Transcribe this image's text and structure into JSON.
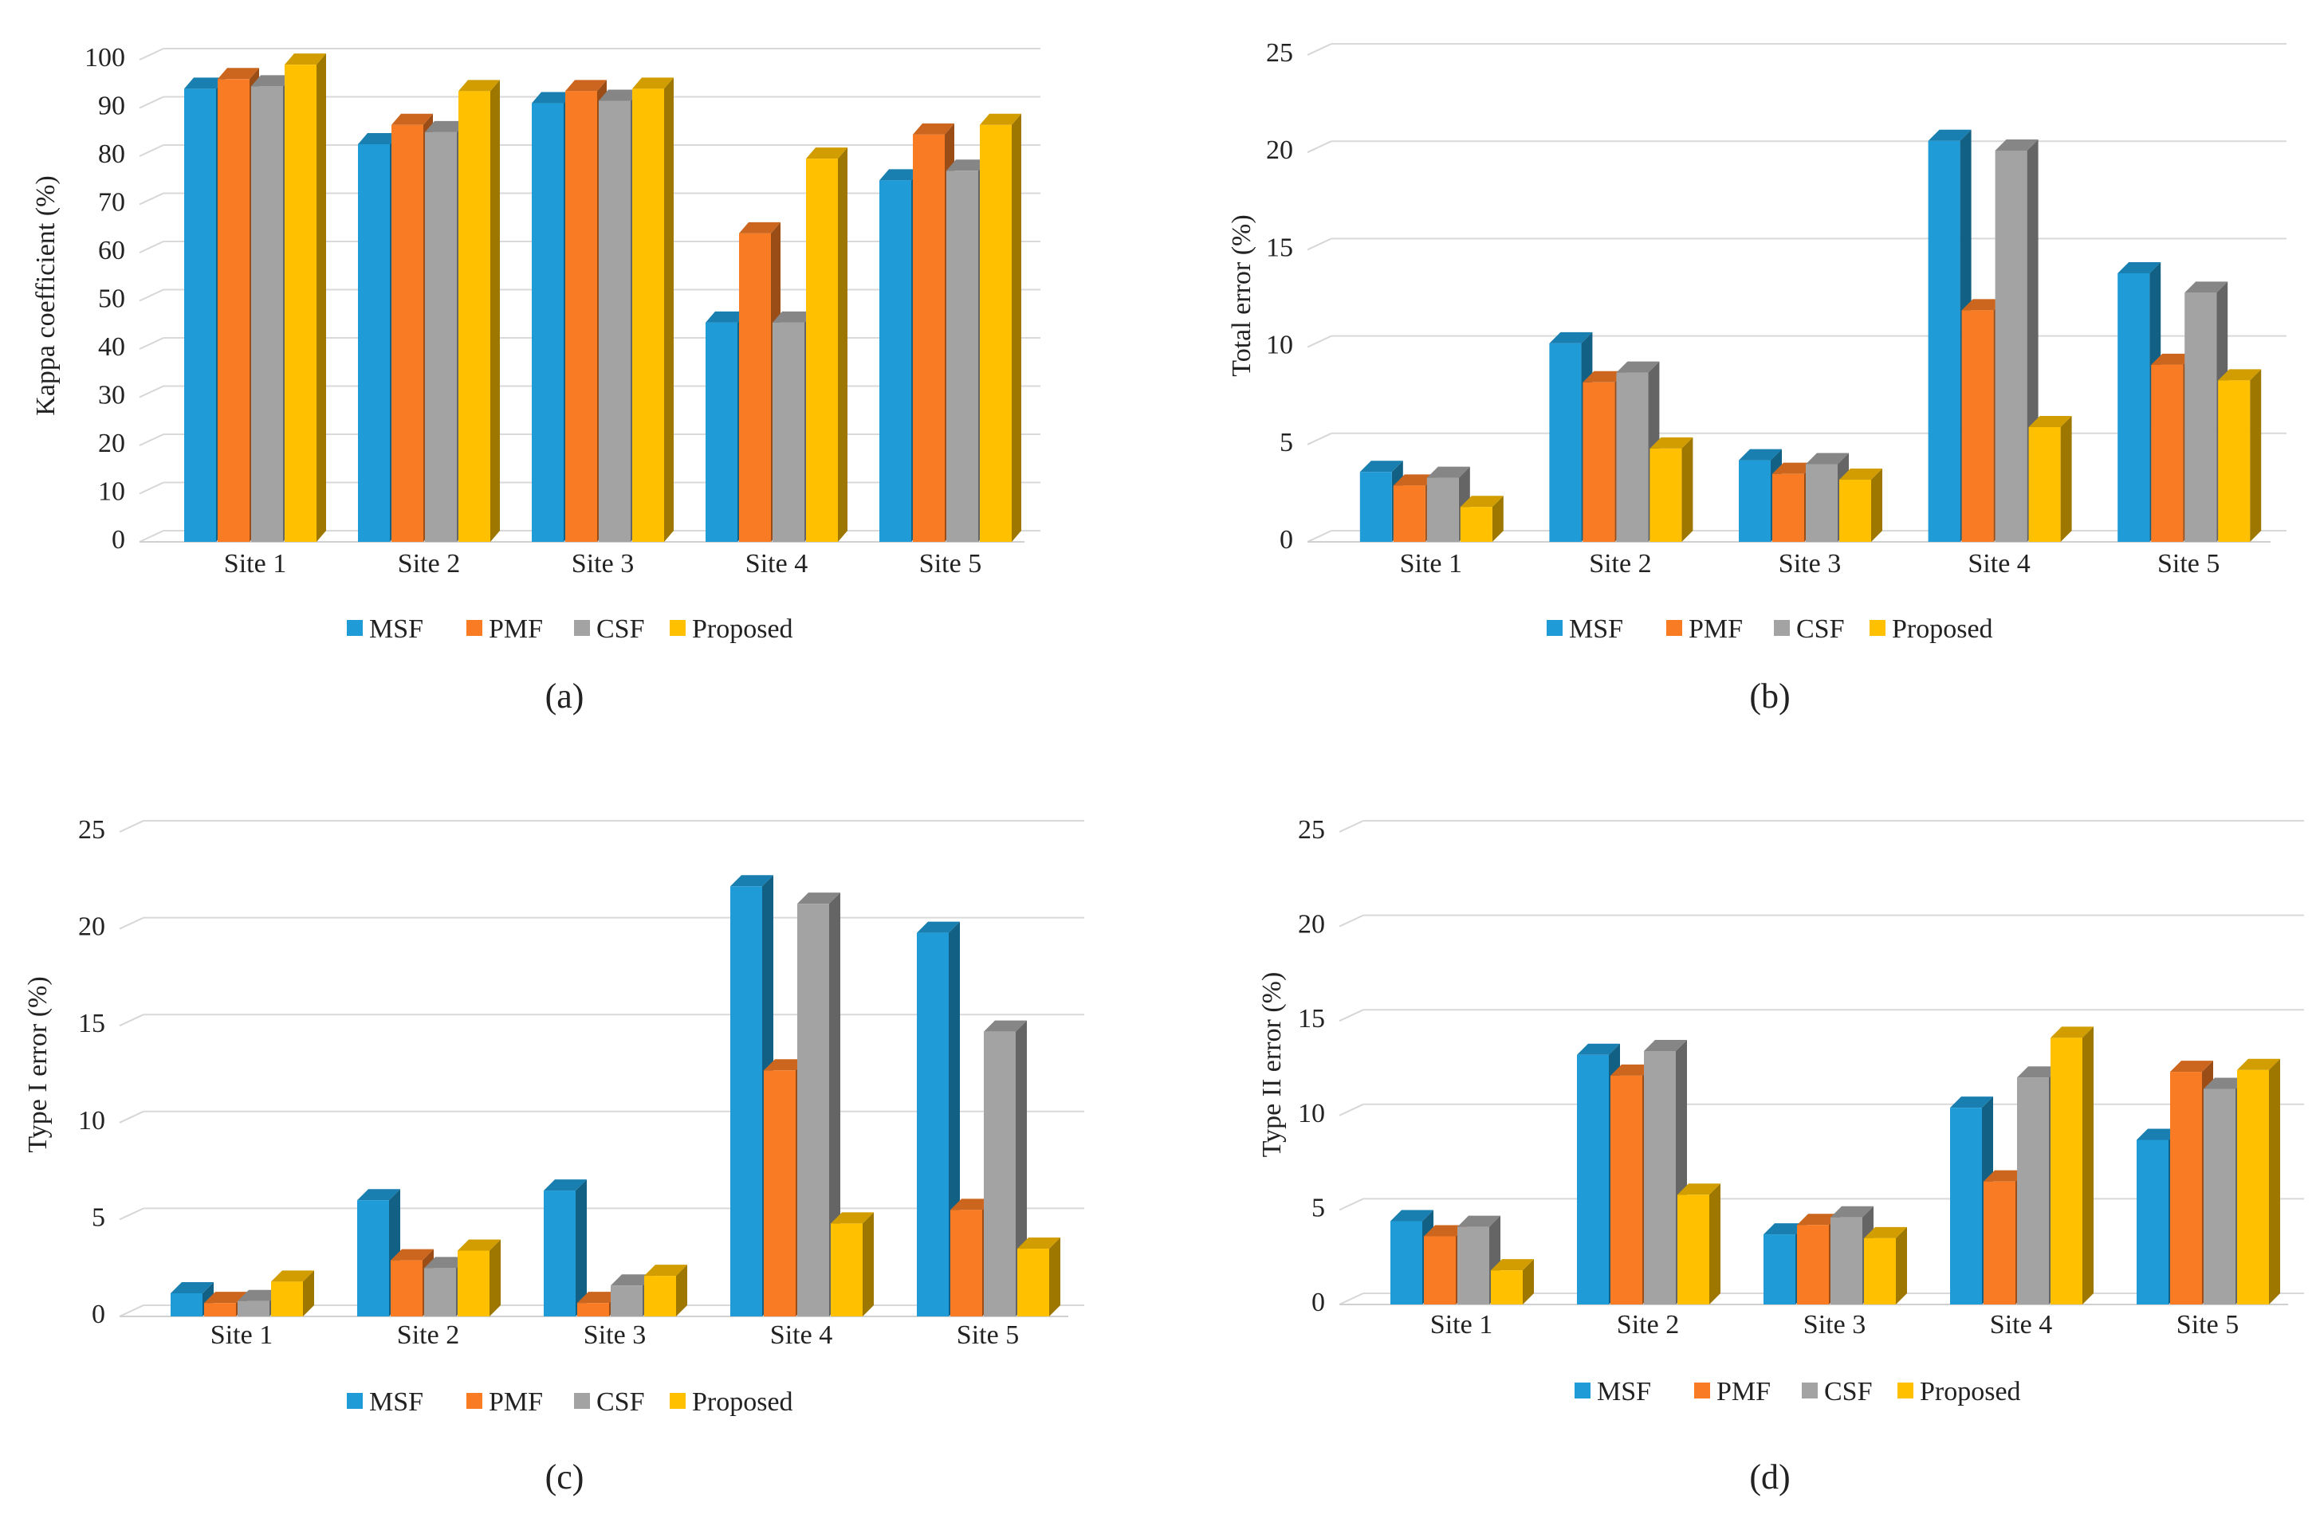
{
  "colors": {
    "MSF": "#1F9BD7",
    "PMF": "#F97C24",
    "CSF": "#A3A3A3",
    "Proposed": "#FFC000"
  },
  "chart_data": [
    {
      "panel": "(a)",
      "type": "bar",
      "ylabel": "Kappa coefficient (%)",
      "xlabel": "",
      "ylim": [
        0,
        100
      ],
      "yticks": [
        "0",
        "10",
        "20",
        "30",
        "40",
        "50",
        "60",
        "70",
        "80",
        "90",
        "100"
      ],
      "categories": [
        "Site 1",
        "Site 2",
        "Site 3",
        "Site 4",
        "Site 5"
      ],
      "series": [
        {
          "name": "MSF",
          "values": [
            92,
            80.5,
            89,
            43.5,
            73
          ]
        },
        {
          "name": "PMF",
          "values": [
            94,
            84.5,
            91.5,
            62,
            82.5
          ]
        },
        {
          "name": "CSF",
          "values": [
            92.5,
            83,
            89.5,
            43.5,
            75
          ]
        },
        {
          "name": "Proposed",
          "values": [
            97,
            91.5,
            92,
            77.5,
            84.5
          ]
        }
      ],
      "legend": [
        "MSF",
        "PMF",
        "CSF",
        "Proposed"
      ],
      "legend_position": "bottom"
    },
    {
      "panel": "(b)",
      "type": "bar",
      "ylabel": "Total error (%)",
      "xlabel": "",
      "ylim": [
        0,
        25
      ],
      "yticks": [
        "0",
        "5",
        "10",
        "15",
        "20",
        "25"
      ],
      "categories": [
        "Site 1",
        "Site 2",
        "Site 3",
        "Site 4",
        "Site 5"
      ],
      "series": [
        {
          "name": "MSF",
          "values": [
            3.1,
            9.7,
            3.7,
            20.1,
            13.3
          ]
        },
        {
          "name": "PMF",
          "values": [
            2.4,
            7.7,
            3,
            11.4,
            8.6
          ]
        },
        {
          "name": "CSF",
          "values": [
            2.8,
            8.2,
            3.5,
            19.6,
            12.3
          ]
        },
        {
          "name": "Proposed",
          "values": [
            1.3,
            4.3,
            2.7,
            5.4,
            7.8
          ]
        }
      ],
      "legend": [
        "MSF",
        "PMF",
        "CSF",
        "Proposed"
      ],
      "legend_position": "bottom"
    },
    {
      "panel": "(c)",
      "type": "bar",
      "ylabel": "Type I error (%)",
      "xlabel": "",
      "ylim": [
        0,
        25
      ],
      "yticks": [
        "0",
        "5",
        "10",
        "15",
        "20",
        "25"
      ],
      "categories": [
        "Site 1",
        "Site 2",
        "Site 3",
        "Site 4",
        "Site 5"
      ],
      "series": [
        {
          "name": "MSF",
          "values": [
            0.7,
            5.5,
            6,
            21.7,
            19.3
          ]
        },
        {
          "name": "PMF",
          "values": [
            0.2,
            2.4,
            0.2,
            12.2,
            5
          ]
        },
        {
          "name": "CSF",
          "values": [
            0.3,
            2,
            1.1,
            20.8,
            14.2
          ]
        },
        {
          "name": "Proposed",
          "values": [
            1.3,
            2.9,
            1.6,
            4.3,
            3
          ]
        }
      ],
      "legend": [
        "MSF",
        "PMF",
        "CSF",
        "Proposed"
      ],
      "legend_position": "bottom"
    },
    {
      "panel": "(d)",
      "type": "bar",
      "ylabel": "Type II error (%)",
      "xlabel": "",
      "ylim": [
        0,
        25
      ],
      "yticks": [
        "0",
        "5",
        "10",
        "15",
        "20",
        "25"
      ],
      "categories": [
        "Site 1",
        "Site 2",
        "Site 3",
        "Site 4",
        "Site 5"
      ],
      "series": [
        {
          "name": "MSF",
          "values": [
            3.9,
            12.7,
            3.2,
            9.9,
            8.2
          ]
        },
        {
          "name": "PMF",
          "values": [
            3.1,
            11.6,
            3.7,
            6,
            11.8
          ]
        },
        {
          "name": "CSF",
          "values": [
            3.6,
            12.9,
            4.1,
            11.5,
            10.9
          ]
        },
        {
          "name": "Proposed",
          "values": [
            1.3,
            5.3,
            3,
            13.6,
            11.9
          ]
        }
      ],
      "legend": [
        "MSF",
        "PMF",
        "CSF",
        "Proposed"
      ],
      "legend_position": "bottom"
    }
  ]
}
